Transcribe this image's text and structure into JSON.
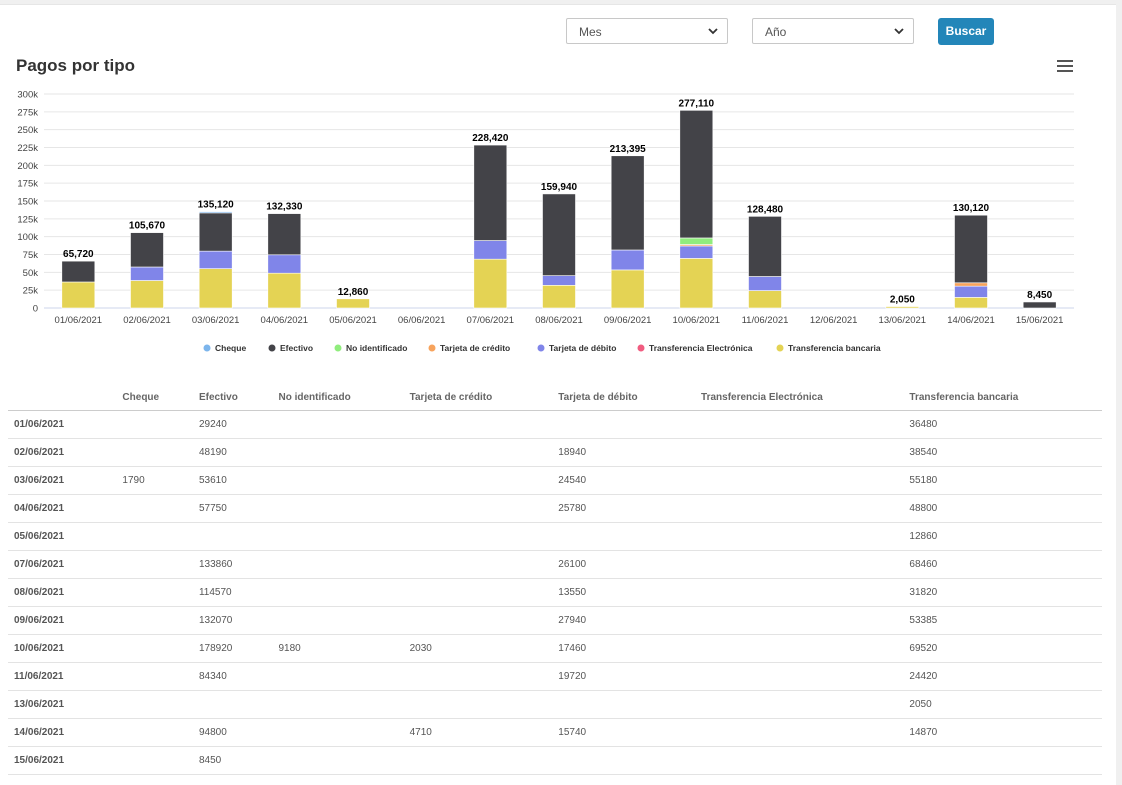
{
  "filters": {
    "month_label": "Mes",
    "year_label": "Año",
    "search_label": "Buscar"
  },
  "chart_data": {
    "type": "bar",
    "stacked": true,
    "title": "Pagos por tipo",
    "categories": [
      "01/06/2021",
      "02/06/2021",
      "03/06/2021",
      "04/06/2021",
      "05/06/2021",
      "06/06/2021",
      "07/06/2021",
      "08/06/2021",
      "09/06/2021",
      "10/06/2021",
      "11/06/2021",
      "12/06/2021",
      "13/06/2021",
      "14/06/2021",
      "15/06/2021"
    ],
    "ylim": [
      0,
      300000
    ],
    "yticks": [
      0,
      25000,
      50000,
      75000,
      100000,
      125000,
      150000,
      175000,
      200000,
      225000,
      250000,
      275000,
      300000
    ],
    "ytick_labels": [
      "0",
      "25k",
      "50k",
      "75k",
      "100k",
      "125k",
      "150k",
      "175k",
      "200k",
      "225k",
      "250k",
      "275k",
      "300k"
    ],
    "series": [
      {
        "name": "Cheque",
        "color": "#7cb5ec",
        "values": [
          0,
          0,
          1790,
          0,
          0,
          0,
          0,
          0,
          0,
          0,
          0,
          0,
          0,
          0,
          0
        ]
      },
      {
        "name": "Efectivo",
        "color": "#434348",
        "values": [
          29240,
          48190,
          53610,
          57750,
          0,
          0,
          133860,
          114570,
          132070,
          178920,
          84340,
          0,
          0,
          94800,
          8450
        ]
      },
      {
        "name": "No identificado",
        "color": "#90ed7d",
        "values": [
          0,
          0,
          0,
          0,
          0,
          0,
          0,
          0,
          0,
          9180,
          0,
          0,
          0,
          0,
          0
        ]
      },
      {
        "name": "Tarjeta de crédito",
        "color": "#f7a35c",
        "values": [
          0,
          0,
          0,
          0,
          0,
          0,
          0,
          0,
          0,
          2030,
          0,
          0,
          0,
          4710,
          0
        ]
      },
      {
        "name": "Tarjeta de débito",
        "color": "#8085e9",
        "values": [
          0,
          18940,
          24540,
          25780,
          0,
          0,
          26100,
          13550,
          27940,
          17460,
          19720,
          0,
          0,
          15740,
          0
        ]
      },
      {
        "name": "Transferencia Electrónica",
        "color": "#f15c80",
        "values": [
          0,
          0,
          0,
          0,
          0,
          0,
          0,
          0,
          0,
          0,
          0,
          0,
          0,
          0,
          0
        ]
      },
      {
        "name": "Transferencia bancaria",
        "color": "#e4d354",
        "values": [
          36480,
          38540,
          55180,
          48800,
          12860,
          0,
          68460,
          31820,
          53385,
          69520,
          24420,
          0,
          2050,
          14870,
          0
        ]
      }
    ],
    "stack_order_bottom_to_top": [
      "Transferencia bancaria",
      "Transferencia Electrónica",
      "Tarjeta de débito",
      "Tarjeta de crédito",
      "No identificado",
      "Efectivo",
      "Cheque"
    ],
    "totals": [
      65720,
      105670,
      135120,
      132330,
      12860,
      0,
      228420,
      159940,
      213395,
      277110,
      128480,
      0,
      2050,
      130120,
      8450
    ],
    "total_labels": [
      "65,720",
      "105,670",
      "135,120",
      "132,330",
      "12,860",
      "",
      "228,420",
      "159,940",
      "213,395",
      "277,110",
      "128,480",
      "",
      "2,050",
      "130,120",
      "8,450"
    ],
    "legend_position": "bottom"
  },
  "table": {
    "headers": [
      "",
      "Cheque",
      "Efectivo",
      "No identificado",
      "Tarjeta de crédito",
      "Tarjeta de débito",
      "Transferencia Electrónica",
      "Transferencia bancaria"
    ],
    "rows": [
      [
        "01/06/2021",
        "",
        "29240",
        "",
        "",
        "",
        "",
        "36480"
      ],
      [
        "02/06/2021",
        "",
        "48190",
        "",
        "",
        "18940",
        "",
        "38540"
      ],
      [
        "03/06/2021",
        "1790",
        "53610",
        "",
        "",
        "24540",
        "",
        "55180"
      ],
      [
        "04/06/2021",
        "",
        "57750",
        "",
        "",
        "25780",
        "",
        "48800"
      ],
      [
        "05/06/2021",
        "",
        "",
        "",
        "",
        "",
        "",
        "12860"
      ],
      [
        "07/06/2021",
        "",
        "133860",
        "",
        "",
        "26100",
        "",
        "68460"
      ],
      [
        "08/06/2021",
        "",
        "114570",
        "",
        "",
        "13550",
        "",
        "31820"
      ],
      [
        "09/06/2021",
        "",
        "132070",
        "",
        "",
        "27940",
        "",
        "53385"
      ],
      [
        "10/06/2021",
        "",
        "178920",
        "9180",
        "2030",
        "17460",
        "",
        "69520"
      ],
      [
        "11/06/2021",
        "",
        "84340",
        "",
        "",
        "19720",
        "",
        "24420"
      ],
      [
        "13/06/2021",
        "",
        "",
        "",
        "",
        "",
        "",
        "2050"
      ],
      [
        "14/06/2021",
        "",
        "94800",
        "",
        "4710",
        "15740",
        "",
        "14870"
      ],
      [
        "15/06/2021",
        "",
        "8450",
        "",
        "",
        "",
        "",
        ""
      ]
    ]
  }
}
